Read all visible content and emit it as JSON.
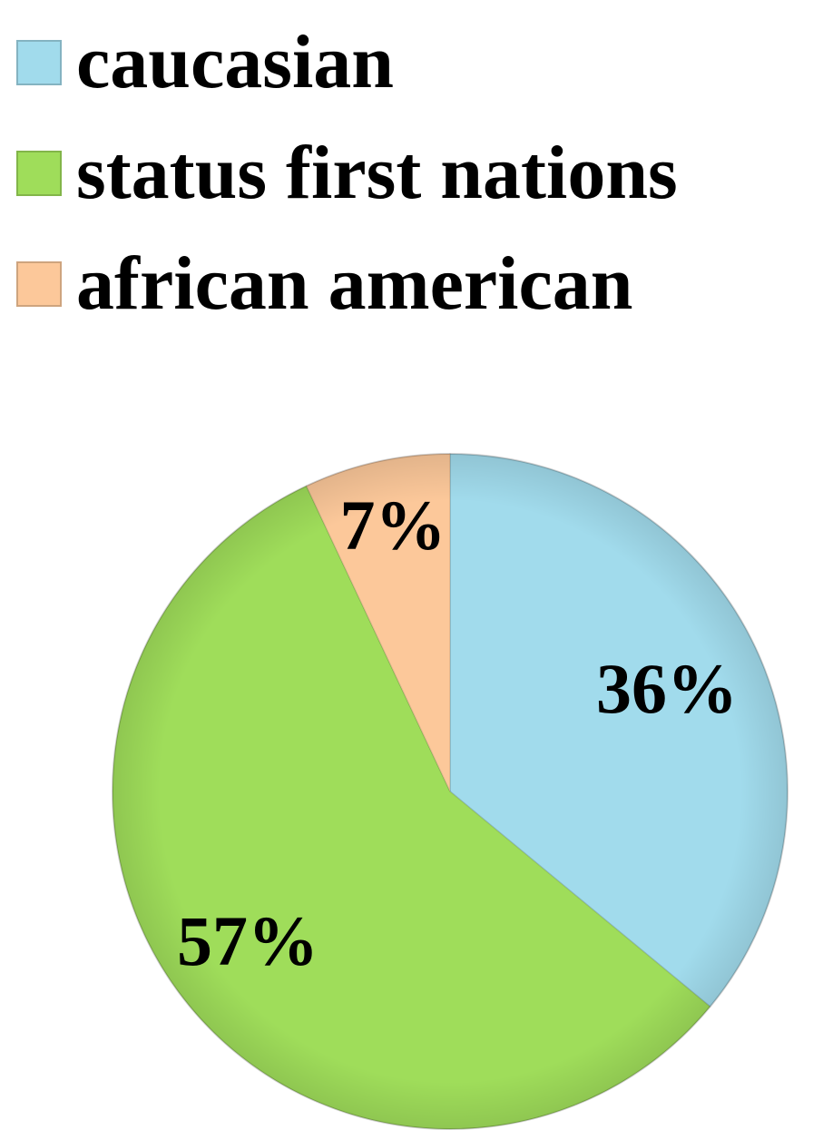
{
  "chart_data": {
    "type": "pie",
    "start_angle_deg": 0,
    "direction": "clockwise",
    "legend_placement": "top",
    "slices": [
      {
        "name": "caucasian",
        "value": 36,
        "label": "36%",
        "color": "#a1dbec"
      },
      {
        "name": "status first nations",
        "value": 57,
        "label": "57%",
        "color": "#9fdd5a"
      },
      {
        "name": "african american",
        "value": 7,
        "label": "7%",
        "color": "#fcc89a"
      }
    ]
  }
}
